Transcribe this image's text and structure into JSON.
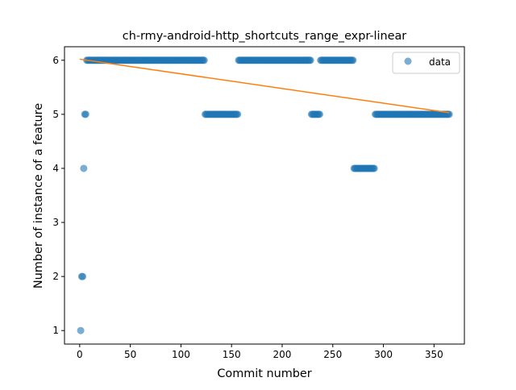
{
  "chart_data": {
    "type": "scatter",
    "title": "ch-rmy-android-http_shortcuts_range_expr-linear",
    "xlabel": "Commit number",
    "ylabel": "Number of instance of a feature",
    "xlim": [
      -15,
      380
    ],
    "ylim": [
      0.75,
      6.25
    ],
    "xticks": [
      0,
      50,
      100,
      150,
      200,
      250,
      300,
      350
    ],
    "yticks": [
      1,
      2,
      3,
      4,
      5,
      6
    ],
    "grid": false,
    "legend": {
      "position": "top-right",
      "entries": [
        "data"
      ]
    },
    "colors": {
      "data": "#1f77b4",
      "fit": "#ff7f0e"
    },
    "series": [
      {
        "name": "data",
        "kind": "scatter",
        "segments": [
          {
            "x_start": 1,
            "x_end": 1,
            "y": 1
          },
          {
            "x_start": 2,
            "x_end": 3,
            "y": 2
          },
          {
            "x_start": 4,
            "x_end": 4,
            "y": 4
          },
          {
            "x_start": 5,
            "x_end": 6,
            "y": 5
          },
          {
            "x_start": 7,
            "x_end": 123,
            "y": 6
          },
          {
            "x_start": 124,
            "x_end": 156,
            "y": 5
          },
          {
            "x_start": 157,
            "x_end": 228,
            "y": 6
          },
          {
            "x_start": 229,
            "x_end": 237,
            "y": 5
          },
          {
            "x_start": 238,
            "x_end": 270,
            "y": 6
          },
          {
            "x_start": 271,
            "x_end": 291,
            "y": 4
          },
          {
            "x_start": 292,
            "x_end": 365,
            "y": 5
          }
        ]
      },
      {
        "kind": "line",
        "x": [
          0,
          365
        ],
        "y": [
          6.02,
          5.03
        ]
      }
    ]
  }
}
